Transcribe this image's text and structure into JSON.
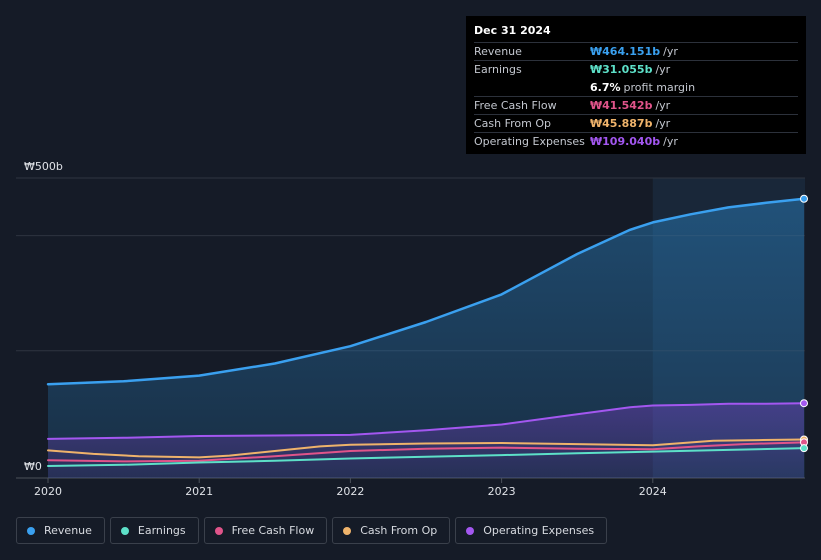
{
  "tooltip": {
    "date": "Dec 31 2024",
    "rows": [
      {
        "label": "Revenue",
        "value": "₩464.151b",
        "unit": "/yr",
        "color": "#3aa0ef"
      },
      {
        "label": "Earnings",
        "value": "₩31.055b",
        "unit": "/yr",
        "color": "#5de0c8"
      },
      {
        "label": "",
        "value": "6.7%",
        "unit": "profit margin",
        "color": "#ffffff"
      },
      {
        "label": "Free Cash Flow",
        "value": "₩41.542b",
        "unit": "/yr",
        "color": "#e0548a"
      },
      {
        "label": "Cash From Op",
        "value": "₩45.887b",
        "unit": "/yr",
        "color": "#efb36b"
      },
      {
        "label": "Operating Expenses",
        "value": "₩109.040b",
        "unit": "/yr",
        "color": "#a357f0"
      }
    ]
  },
  "legend": [
    {
      "label": "Revenue",
      "color": "#3aa0ef"
    },
    {
      "label": "Earnings",
      "color": "#5de0c8"
    },
    {
      "label": "Free Cash Flow",
      "color": "#e0548a"
    },
    {
      "label": "Cash From Op",
      "color": "#efb36b"
    },
    {
      "label": "Operating Expenses",
      "color": "#a357f0"
    }
  ],
  "chart_data": {
    "type": "area",
    "y_top_label": "₩500b",
    "y_bottom_label": "₩0",
    "ylim": [
      0,
      500
    ],
    "xlim": [
      2019.98,
      2025.0
    ],
    "x_ticks": [
      {
        "value": 2020,
        "label": "2020"
      },
      {
        "value": 2021,
        "label": "2021"
      },
      {
        "value": 2022,
        "label": "2022"
      },
      {
        "value": 2023,
        "label": "2023"
      },
      {
        "value": 2024,
        "label": "2024"
      }
    ],
    "gridlines": [
      500,
      400,
      200,
      0
    ],
    "highlight_from": 2024.0,
    "series": [
      {
        "name": "Revenue",
        "color": "#3aa0ef",
        "fill": true,
        "x": [
          2020.0,
          2020.5,
          2021.0,
          2021.5,
          2022.0,
          2022.5,
          2023.0,
          2023.5,
          2023.85,
          2024.0,
          2024.25,
          2024.5,
          2024.75,
          2025.0
        ],
        "y": [
          142,
          147,
          157,
          178,
          208,
          250,
          298,
          368,
          410,
          423,
          437,
          449,
          457,
          464
        ]
      },
      {
        "name": "Operating Expenses",
        "color": "#a357f0",
        "fill": true,
        "x": [
          2020.0,
          2020.5,
          2021.0,
          2021.5,
          2022.0,
          2022.5,
          2023.0,
          2023.5,
          2023.85,
          2024.0,
          2024.25,
          2024.5,
          2024.75,
          2025.0
        ],
        "y": [
          47,
          49,
          52,
          53,
          54,
          62,
          72,
          90,
          102,
          105,
          106,
          108,
          108,
          109
        ]
      },
      {
        "name": "Cash From Op",
        "color": "#efb36b",
        "fill": false,
        "x": [
          2020.0,
          2020.3,
          2020.6,
          2021.0,
          2021.2,
          2021.5,
          2021.8,
          2022.0,
          2022.5,
          2023.0,
          2023.5,
          2024.0,
          2024.2,
          2024.4,
          2024.7,
          2025.0
        ],
        "y": [
          27,
          21,
          17,
          15,
          18,
          26,
          34,
          37,
          39,
          40,
          38,
          36,
          40,
          44,
          45,
          46
        ]
      },
      {
        "name": "Free Cash Flow",
        "color": "#e0548a",
        "fill": false,
        "x": [
          2020.0,
          2020.5,
          2021.0,
          2021.5,
          2022.0,
          2022.5,
          2023.0,
          2023.5,
          2024.0,
          2024.3,
          2024.6,
          2025.0
        ],
        "y": [
          10,
          8,
          9,
          17,
          26,
          30,
          32,
          30,
          29,
          34,
          38,
          41
        ]
      },
      {
        "name": "Earnings",
        "color": "#5de0c8",
        "fill": false,
        "x": [
          2020.0,
          2020.5,
          2021.0,
          2021.5,
          2022.0,
          2022.5,
          2023.0,
          2023.5,
          2024.0,
          2024.5,
          2025.0
        ],
        "y": [
          0,
          2,
          6,
          9,
          13,
          16,
          19,
          22,
          25,
          28,
          31
        ]
      }
    ]
  }
}
